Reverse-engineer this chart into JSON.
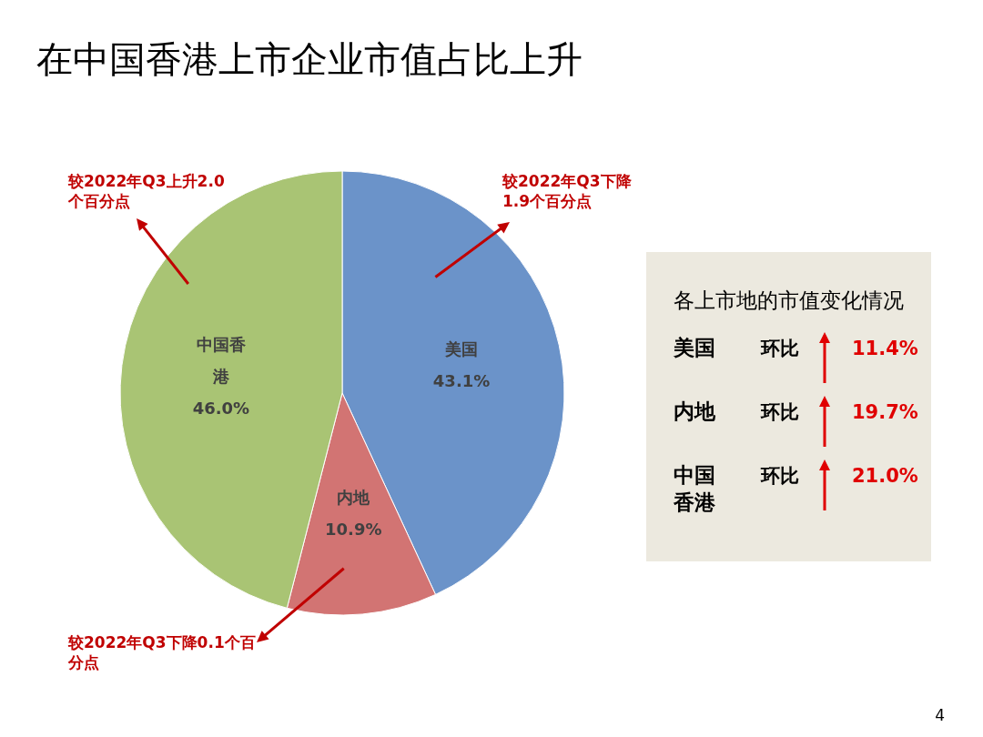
{
  "chart_data": [
    {
      "type": "pie",
      "title": "在中国香港上市企业市值占比上升",
      "categories": [
        "美国",
        "内地",
        "中国香港"
      ],
      "values": [
        43.1,
        10.9,
        46.0
      ],
      "colors": [
        "#6b93c9",
        "#d27473",
        "#a9c474"
      ],
      "value_labels": [
        "43.1%",
        "10.9%",
        "46.0%"
      ],
      "legend": false,
      "annotations": [
        {
          "text": "较2022年Q3下降1.9个百分点",
          "x": "美国"
        },
        {
          "text": "较2022年Q3下降0.1个百分点",
          "x": "内地"
        },
        {
          "text": "较2022年Q3上升2.0个百分点",
          "x": "中国香港"
        },
        "4"
      ]
    },
    {
      "type": "other",
      "title": "各上市地的市值变化情况",
      "categories": [
        "美国",
        "内地",
        "中国香港"
      ],
      "series": [
        {
          "name": "环比",
          "values": [
            11.4,
            19.7,
            21.0
          ],
          "value_labels": [
            "11.4%",
            "19.7%",
            "21.0%"
          ]
        }
      ]
    }
  ]
}
